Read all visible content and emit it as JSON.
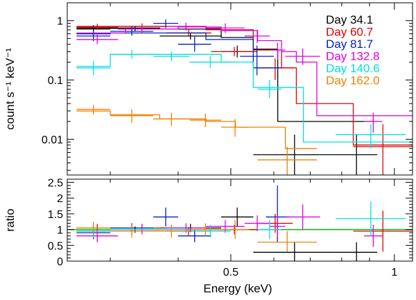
{
  "chart_data": {
    "type": "scatter",
    "title": "",
    "xlabel": "Energy (keV)",
    "x_scale": "log",
    "xlim": [
      0.25,
      1.08
    ],
    "x_ticks": [
      0.5,
      1
    ],
    "x_tick_labels": [
      "0.5",
      "1"
    ],
    "panels": {
      "spectrum": {
        "ylabel": "count s⁻¹ keV⁻¹",
        "y_scale": "log",
        "ylim": [
          0.0025,
          2.0
        ],
        "y_ticks": [
          0.01,
          0.1,
          1
        ],
        "y_tick_labels": [
          "0.01",
          "0.1",
          "1"
        ]
      },
      "ratio": {
        "ylabel": "ratio",
        "y_scale": "linear",
        "ylim": [
          0,
          2.6
        ],
        "y_ticks": [
          0,
          0.5,
          1,
          1.5,
          2,
          2.5
        ],
        "y_tick_labels": [
          "0",
          "0.5",
          "1",
          "1.5",
          "2",
          "2.5"
        ],
        "reference_line": 1.0
      }
    },
    "legend": {
      "position": "top-right",
      "entries": [
        "Day 34.1",
        "Day 60.7",
        "Day 81.7",
        "Day 132.8",
        "Day 140.6",
        "Day 162.0"
      ]
    },
    "series": [
      {
        "name": "Day 34.1",
        "color": "#000000",
        "model": {
          "edges": [
            0.26,
            0.3,
            0.37,
            0.48,
            0.55,
            0.61,
            0.66,
            0.93
          ],
          "values": [
            0.75,
            0.75,
            0.72,
            0.52,
            0.33,
            0.02,
            0.02
          ]
        },
        "data": [
          {
            "lo": 0.26,
            "hi": 0.3,
            "y": 0.72,
            "yerr": [
              0.62,
              0.84
            ]
          },
          {
            "lo": 0.3,
            "hi": 0.37,
            "y": 0.74,
            "yerr": [
              0.66,
              0.82
            ]
          },
          {
            "lo": 0.37,
            "hi": 0.48,
            "y": 0.55,
            "yerr": [
              0.48,
              0.63
            ]
          },
          {
            "lo": 0.48,
            "hi": 0.55,
            "y": 0.3,
            "yerr": [
              0.24,
              0.38
            ]
          },
          {
            "lo": 0.55,
            "hi": 0.78,
            "y": 0.0055,
            "yerr": [
              0.0025,
              0.012
            ]
          },
          {
            "lo": 0.78,
            "hi": 0.93,
            "y": 0.0055,
            "yerr": [
              0.0025,
              0.012
            ]
          }
        ],
        "ratio": [
          {
            "lo": 0.26,
            "hi": 0.3,
            "y": 0.95,
            "yerr": [
              0.8,
              1.1
            ]
          },
          {
            "lo": 0.3,
            "hi": 0.37,
            "y": 1.0,
            "yerr": [
              0.9,
              1.1
            ]
          },
          {
            "lo": 0.37,
            "hi": 0.48,
            "y": 1.05,
            "yerr": [
              0.92,
              1.18
            ]
          },
          {
            "lo": 0.48,
            "hi": 0.55,
            "y": 1.4,
            "yerr": [
              1.1,
              1.7
            ]
          },
          {
            "lo": 0.55,
            "hi": 0.78,
            "y": 0.28,
            "yerr": [
              0.0,
              0.6
            ]
          },
          {
            "lo": 0.78,
            "hi": 0.93,
            "y": 0.28,
            "yerr": [
              0.0,
              0.6
            ]
          }
        ]
      },
      {
        "name": "Day 60.7",
        "color": "#e00000",
        "model": {
          "edges": [
            0.26,
            0.3,
            0.37,
            0.45,
            0.55,
            0.62,
            0.66,
            0.84,
            1.08
          ],
          "values": [
            0.8,
            0.8,
            0.8,
            0.7,
            0.32,
            0.16,
            0.04,
            0.008
          ]
        },
        "data": [
          {
            "lo": 0.26,
            "hi": 0.31,
            "y": 0.78,
            "yerr": [
              0.7,
              0.88
            ]
          },
          {
            "lo": 0.31,
            "hi": 0.38,
            "y": 0.8,
            "yerr": [
              0.72,
              0.9
            ]
          },
          {
            "lo": 0.38,
            "hi": 0.46,
            "y": 0.62,
            "yerr": [
              0.54,
              0.72
            ]
          },
          {
            "lo": 0.46,
            "hi": 0.56,
            "y": 0.3,
            "yerr": [
              0.25,
              0.36
            ]
          },
          {
            "lo": 0.56,
            "hi": 0.65,
            "y": 0.16,
            "yerr": [
              0.1,
              0.23
            ]
          },
          {
            "lo": 0.84,
            "hi": 1.08,
            "y": 0.0075,
            "yerr": [
              0.0025,
              0.018
            ]
          }
        ],
        "ratio": [
          {
            "lo": 0.26,
            "hi": 0.31,
            "y": 1.05,
            "yerr": [
              0.92,
              1.18
            ]
          },
          {
            "lo": 0.31,
            "hi": 0.38,
            "y": 1.05,
            "yerr": [
              0.92,
              1.18
            ]
          },
          {
            "lo": 0.38,
            "hi": 0.46,
            "y": 0.95,
            "yerr": [
              0.82,
              1.08
            ]
          },
          {
            "lo": 0.46,
            "hi": 0.56,
            "y": 1.0,
            "yerr": [
              0.85,
              1.15
            ]
          },
          {
            "lo": 0.56,
            "hi": 0.65,
            "y": 1.2,
            "yerr": [
              0.9,
              1.5
            ]
          },
          {
            "lo": 0.84,
            "hi": 1.08,
            "y": 0.95,
            "yerr": [
              0.3,
              1.6
            ]
          }
        ]
      },
      {
        "name": "Day 81.7",
        "color": "#0020c0",
        "model": {
          "edges": [
            0.26,
            0.3,
            0.37,
            0.45,
            0.55,
            0.62
          ],
          "values": [
            0.6,
            0.62,
            0.62,
            0.48,
            0.16
          ]
        },
        "data": [
          {
            "lo": 0.26,
            "hi": 0.3,
            "y": 0.55,
            "yerr": [
              0.45,
              0.7
            ]
          },
          {
            "lo": 0.3,
            "hi": 0.36,
            "y": 0.66,
            "yerr": [
              0.56,
              0.8
            ]
          },
          {
            "lo": 0.36,
            "hi": 0.4,
            "y": 0.9,
            "yerr": [
              0.75,
              1.05
            ]
          },
          {
            "lo": 0.4,
            "hi": 0.46,
            "y": 0.4,
            "yerr": [
              0.3,
              0.55
            ]
          },
          {
            "lo": 0.52,
            "hi": 0.6,
            "y": 0.25,
            "yerr": [
              0.12,
              0.38
            ]
          }
        ],
        "ratio": [
          {
            "lo": 0.26,
            "hi": 0.3,
            "y": 0.9,
            "yerr": [
              0.7,
              1.1
            ]
          },
          {
            "lo": 0.3,
            "hi": 0.36,
            "y": 1.05,
            "yerr": [
              0.9,
              1.2
            ]
          },
          {
            "lo": 0.36,
            "hi": 0.4,
            "y": 1.4,
            "yerr": [
              1.1,
              1.7
            ]
          },
          {
            "lo": 0.4,
            "hi": 0.46,
            "y": 0.8,
            "yerr": [
              0.6,
              1.0
            ]
          },
          {
            "lo": 0.58,
            "hi": 0.64,
            "y": 1.4,
            "yerr": [
              0.6,
              2.4
            ]
          }
        ]
      },
      {
        "name": "Day 132.8",
        "color": "#e000e0",
        "model": {
          "edges": [
            0.26,
            0.32,
            0.4,
            0.48,
            0.56,
            0.62,
            0.66,
            0.72,
            1.08
          ],
          "values": [
            0.62,
            0.72,
            0.78,
            0.68,
            0.46,
            0.3,
            0.2,
            0.025
          ]
        },
        "data": [
          {
            "lo": 0.26,
            "hi": 0.31,
            "y": 0.48,
            "yerr": [
              0.4,
              0.58
            ]
          },
          {
            "lo": 0.31,
            "hi": 0.38,
            "y": 0.72,
            "yerr": [
              0.62,
              0.84
            ]
          },
          {
            "lo": 0.38,
            "hi": 0.45,
            "y": 0.8,
            "yerr": [
              0.68,
              0.92
            ]
          },
          {
            "lo": 0.45,
            "hi": 0.53,
            "y": 0.75,
            "yerr": [
              0.62,
              0.9
            ]
          },
          {
            "lo": 0.53,
            "hi": 0.59,
            "y": 0.55,
            "yerr": [
              0.42,
              0.7
            ]
          },
          {
            "lo": 0.59,
            "hi": 0.63,
            "y": 0.32,
            "yerr": [
              0.22,
              0.42
            ]
          },
          {
            "lo": 0.63,
            "hi": 0.73,
            "y": 0.25,
            "yerr": [
              0.18,
              0.34
            ]
          },
          {
            "lo": 0.88,
            "hi": 0.95,
            "y": 0.02,
            "yerr": [
              0.013,
              0.028
            ]
          }
        ],
        "ratio": [
          {
            "lo": 0.26,
            "hi": 0.31,
            "y": 0.8,
            "yerr": [
              0.6,
              1.0
            ]
          },
          {
            "lo": 0.31,
            "hi": 0.38,
            "y": 1.0,
            "yerr": [
              0.85,
              1.15
            ]
          },
          {
            "lo": 0.38,
            "hi": 0.45,
            "y": 1.05,
            "yerr": [
              0.9,
              1.2
            ]
          },
          {
            "lo": 0.45,
            "hi": 0.53,
            "y": 1.1,
            "yerr": [
              0.9,
              1.3
            ]
          },
          {
            "lo": 0.53,
            "hi": 0.59,
            "y": 1.2,
            "yerr": [
              0.95,
              1.45
            ]
          },
          {
            "lo": 0.59,
            "hi": 0.63,
            "y": 1.1,
            "yerr": [
              0.75,
              1.45
            ]
          },
          {
            "lo": 0.63,
            "hi": 0.73,
            "y": 1.4,
            "yerr": [
              1.0,
              1.8
            ]
          },
          {
            "lo": 0.88,
            "hi": 0.95,
            "y": 0.8,
            "yerr": [
              0.45,
              1.15
            ]
          }
        ]
      },
      {
        "name": "Day 140.6",
        "color": "#00e0e0",
        "model": {
          "edges": [
            0.26,
            0.3,
            0.37,
            0.48,
            0.55,
            0.61,
            0.68,
            1.08
          ],
          "values": [
            0.17,
            0.27,
            0.27,
            0.2,
            0.075,
            0.075,
            0.009
          ]
        },
        "data": [
          {
            "lo": 0.26,
            "hi": 0.3,
            "y": 0.16,
            "yerr": [
              0.12,
              0.21
            ]
          },
          {
            "lo": 0.3,
            "hi": 0.36,
            "y": 0.27,
            "yerr": [
              0.23,
              0.32
            ]
          },
          {
            "lo": 0.36,
            "hi": 0.42,
            "y": 0.25,
            "yerr": [
              0.21,
              0.3
            ]
          },
          {
            "lo": 0.42,
            "hi": 0.5,
            "y": 0.2,
            "yerr": [
              0.16,
              0.25
            ]
          },
          {
            "lo": 0.56,
            "hi": 0.62,
            "y": 0.07,
            "yerr": [
              0.05,
              0.1
            ]
          },
          {
            "lo": 0.78,
            "hi": 1.05,
            "y": 0.012,
            "yerr": [
              0.007,
              0.018
            ]
          }
        ],
        "ratio": [
          {
            "lo": 0.26,
            "hi": 0.3,
            "y": 0.95,
            "yerr": [
              0.75,
              1.15
            ]
          },
          {
            "lo": 0.3,
            "hi": 0.36,
            "y": 1.0,
            "yerr": [
              0.85,
              1.15
            ]
          },
          {
            "lo": 0.36,
            "hi": 0.42,
            "y": 1.0,
            "yerr": [
              0.85,
              1.15
            ]
          },
          {
            "lo": 0.42,
            "hi": 0.5,
            "y": 0.95,
            "yerr": [
              0.75,
              1.15
            ]
          },
          {
            "lo": 0.56,
            "hi": 0.62,
            "y": 1.0,
            "yerr": [
              0.7,
              1.3
            ]
          },
          {
            "lo": 0.78,
            "hi": 1.05,
            "y": 1.35,
            "yerr": [
              0.8,
              1.9
            ]
          }
        ]
      },
      {
        "name": "Day 162.0",
        "color": "#f08000",
        "model": {
          "edges": [
            0.26,
            0.3,
            0.37,
            0.45,
            0.51,
            0.63,
            0.72
          ],
          "values": [
            0.03,
            0.026,
            0.022,
            0.02,
            0.016,
            0.007
          ]
        },
        "data": [
          {
            "lo": 0.26,
            "hi": 0.3,
            "y": 0.032,
            "yerr": [
              0.026,
              0.038
            ]
          },
          {
            "lo": 0.3,
            "hi": 0.36,
            "y": 0.025,
            "yerr": [
              0.019,
              0.032
            ]
          },
          {
            "lo": 0.36,
            "hi": 0.42,
            "y": 0.022,
            "yerr": [
              0.017,
              0.028
            ]
          },
          {
            "lo": 0.42,
            "hi": 0.48,
            "y": 0.021,
            "yerr": [
              0.016,
              0.027
            ]
          },
          {
            "lo": 0.48,
            "hi": 0.54,
            "y": 0.016,
            "yerr": [
              0.011,
              0.022
            ]
          },
          {
            "lo": 0.56,
            "hi": 0.72,
            "y": 0.0045,
            "yerr": [
              0.0025,
              0.0075
            ]
          }
        ],
        "ratio": [
          {
            "lo": 0.26,
            "hi": 0.3,
            "y": 1.05,
            "yerr": [
              0.85,
              1.25
            ]
          },
          {
            "lo": 0.3,
            "hi": 0.36,
            "y": 0.95,
            "yerr": [
              0.75,
              1.15
            ]
          },
          {
            "lo": 0.36,
            "hi": 0.42,
            "y": 0.95,
            "yerr": [
              0.75,
              1.15
            ]
          },
          {
            "lo": 0.42,
            "hi": 0.48,
            "y": 1.0,
            "yerr": [
              0.8,
              1.2
            ]
          },
          {
            "lo": 0.48,
            "hi": 0.54,
            "y": 1.0,
            "yerr": [
              0.7,
              1.3
            ]
          },
          {
            "lo": 0.56,
            "hi": 0.72,
            "y": 0.6,
            "yerr": [
              0.3,
              0.95
            ]
          }
        ]
      }
    ]
  }
}
